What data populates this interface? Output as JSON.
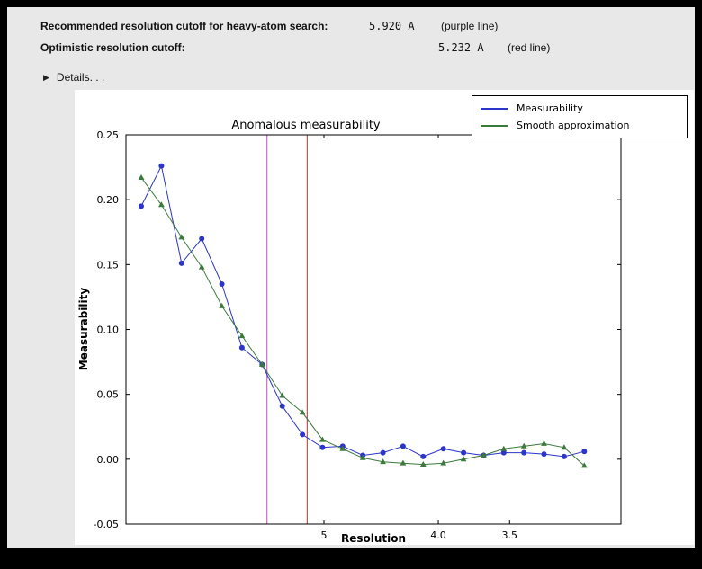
{
  "window": {
    "bg_color": "#000000",
    "panel_bg_color": "#e8e8e8"
  },
  "header": {
    "rows": [
      {
        "label": "Recommended resolution cutoff for heavy-atom search:",
        "value": "5.920 A",
        "note": "(purple line)"
      },
      {
        "label": "Optimistic resolution cutoff:",
        "value": "5.232 A",
        "note": "(red line)"
      }
    ],
    "details_icon": "disclosure-triangle",
    "details_icon_glyph": "▶",
    "details_label": "Details. . ."
  },
  "chart_data": {
    "type": "line",
    "title": "Anomalous measurability",
    "xlabel": "Resolution",
    "ylabel": "Measurability",
    "ylim": [
      -0.05,
      0.25
    ],
    "y_ticks": [
      -0.05,
      0.0,
      0.05,
      0.1,
      0.15,
      0.2,
      0.25
    ],
    "x_axis_note": "resolution in Angstrom, decreasing left to right, non-linear scale",
    "x_ticks": [
      {
        "label": "5",
        "pos": 0.4
      },
      {
        "label": "4.0",
        "pos": 0.631
      },
      {
        "label": "3.5",
        "pos": 0.775
      }
    ],
    "x_start_frac": 0.031,
    "x_end_frac": 0.926,
    "grid": false,
    "legend_position": "top-right",
    "vlines": [
      {
        "name": "recommended-cutoff-line",
        "resolution": "5.920 A",
        "color": "#bb4cbb",
        "pos": 0.285
      },
      {
        "name": "optimistic-cutoff-line",
        "resolution": "5.232 A",
        "color": "#9e3a28",
        "pos": 0.366
      }
    ],
    "series": [
      {
        "name": "Measurability",
        "color": "#2b35c8",
        "marker": "circle",
        "values": [
          0.195,
          0.226,
          0.151,
          0.17,
          0.135,
          0.086,
          0.073,
          0.041,
          0.019,
          0.009,
          0.01,
          0.003,
          0.005,
          0.01,
          0.002,
          0.008,
          0.005,
          0.003,
          0.005,
          0.005,
          0.004,
          0.002,
          0.006
        ]
      },
      {
        "name": "Smooth approximation",
        "color": "#3b7a3b",
        "marker": "triangle",
        "values": [
          0.217,
          0.196,
          0.171,
          0.148,
          0.118,
          0.095,
          0.073,
          0.049,
          0.036,
          0.015,
          0.008,
          0.001,
          -0.002,
          -0.003,
          -0.004,
          -0.003,
          0.0,
          0.003,
          0.008,
          0.01,
          0.012,
          0.009,
          -0.005
        ]
      }
    ]
  }
}
